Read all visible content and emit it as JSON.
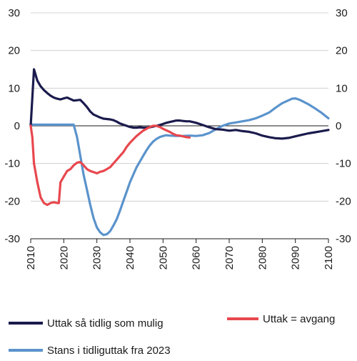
{
  "chart_data": {
    "type": "line",
    "title": "",
    "xlabel": "",
    "ylabel": "",
    "xlim": [
      2010,
      2100
    ],
    "ylim": [
      -30,
      30
    ],
    "x_ticks": [
      "2010",
      "2020",
      "2030",
      "2040",
      "2050",
      "2060",
      "2070",
      "2080",
      "2090",
      "2100"
    ],
    "y_ticks": [
      "30",
      "20",
      "10",
      "0",
      "-10",
      "-20",
      "-30"
    ],
    "grid": "horizontal",
    "legend_placement": "bottom",
    "series": [
      {
        "name": "Uttak så tidlig som mulig",
        "color": "#1b1b4d",
        "x": [
          2010,
          2011,
          2012,
          2013,
          2014,
          2015,
          2016,
          2017,
          2018,
          2019,
          2020,
          2021,
          2022,
          2023,
          2024,
          2025,
          2026,
          2027,
          2028,
          2029,
          2030,
          2031,
          2032,
          2033,
          2034,
          2035,
          2036,
          2037,
          2038,
          2039,
          2040,
          2041,
          2042,
          2043,
          2044,
          2045,
          2046,
          2047,
          2048,
          2049,
          2050,
          2051,
          2052,
          2053,
          2054,
          2055,
          2056,
          2057,
          2058,
          2059,
          2060,
          2062,
          2064,
          2066,
          2068,
          2070,
          2072,
          2074,
          2076,
          2078,
          2080,
          2082,
          2084,
          2086,
          2088,
          2090,
          2092,
          2094,
          2096,
          2098,
          2100
        ],
        "y": [
          0,
          15,
          12,
          10.5,
          9.5,
          8.7,
          8,
          7.5,
          7.2,
          7,
          7.3,
          7.5,
          7.1,
          6.7,
          6.8,
          6.9,
          6,
          5,
          3.8,
          3,
          2.6,
          2.2,
          1.9,
          1.8,
          1.7,
          1.5,
          1.1,
          0.6,
          0.3,
          0,
          -0.3,
          -0.5,
          -0.5,
          -0.4,
          -0.5,
          -0.5,
          -0.4,
          -0.2,
          0,
          0.2,
          0.5,
          0.8,
          1,
          1.2,
          1.4,
          1.4,
          1.3,
          1.2,
          1.2,
          1,
          0.8,
          0.2,
          -0.4,
          -0.9,
          -1,
          -1.3,
          -1.1,
          -1.4,
          -1.6,
          -2,
          -2.6,
          -3,
          -3.3,
          -3.4,
          -3.2,
          -2.8,
          -2.4,
          -2,
          -1.7,
          -1.4,
          -1.1
        ]
      },
      {
        "name": "Stans i tidliguttak fra 2023",
        "color": "#5a93cc",
        "x": [
          2010,
          2011,
          2012,
          2014,
          2016,
          2018,
          2020,
          2022,
          2023,
          2024,
          2025,
          2026,
          2027,
          2028,
          2029,
          2030,
          2031,
          2032,
          2033,
          2034,
          2035,
          2036,
          2037,
          2038,
          2039,
          2040,
          2041,
          2042,
          2043,
          2044,
          2045,
          2046,
          2047,
          2048,
          2049,
          2050,
          2051,
          2052,
          2054,
          2056,
          2058,
          2060,
          2062,
          2064,
          2066,
          2068,
          2070,
          2072,
          2074,
          2076,
          2078,
          2080,
          2082,
          2084,
          2086,
          2088,
          2089,
          2090,
          2091,
          2092,
          2094,
          2096,
          2098,
          2100
        ],
        "y": [
          0.3,
          0.3,
          0.3,
          0.3,
          0.3,
          0.3,
          0.3,
          0.3,
          0.3,
          -3,
          -8,
          -13,
          -17,
          -21,
          -24.5,
          -27,
          -28.3,
          -29,
          -28.8,
          -28,
          -26.5,
          -24.8,
          -22.5,
          -20,
          -17.5,
          -15,
          -13,
          -11,
          -9.5,
          -8,
          -6.5,
          -5.2,
          -4.2,
          -3.5,
          -3,
          -2.7,
          -2.5,
          -2.6,
          -2.7,
          -2.7,
          -2.6,
          -2.7,
          -2.5,
          -1.9,
          -0.9,
          0,
          0.6,
          0.9,
          1.2,
          1.5,
          2,
          2.7,
          3.5,
          4.8,
          6,
          6.8,
          7.2,
          7.3,
          7,
          6.6,
          5.7,
          4.6,
          3.4,
          2
        ]
      },
      {
        "name": "Uttak = avgang",
        "color": "#e8474e",
        "x": [
          2010,
          2010.5,
          2011,
          2012,
          2013,
          2014,
          2015,
          2016,
          2017,
          2018,
          2018.5,
          2019,
          2020,
          2021,
          2022,
          2023,
          2024,
          2025,
          2026,
          2027,
          2028,
          2029,
          2030,
          2031,
          2032,
          2033,
          2034,
          2035,
          2036,
          2037,
          2038,
          2039,
          2040,
          2041,
          2042,
          2043,
          2044,
          2045,
          2046,
          2047,
          2048,
          2049,
          2050,
          2051,
          2052,
          2053,
          2054,
          2055,
          2056,
          2057,
          2058
        ],
        "y": [
          0,
          -3,
          -10,
          -15,
          -19,
          -20.5,
          -21,
          -20.5,
          -20.3,
          -20.5,
          -20.5,
          -15,
          -13.5,
          -12,
          -11.5,
          -10.5,
          -9.8,
          -9.6,
          -10.5,
          -11.5,
          -12,
          -12.3,
          -12.6,
          -12.2,
          -12,
          -11.5,
          -11,
          -10,
          -9,
          -8,
          -7,
          -5.6,
          -4.5,
          -3.6,
          -2.7,
          -2,
          -1.3,
          -0.8,
          -0.3,
          0,
          0,
          -0.3,
          -0.8,
          -1.2,
          -1.6,
          -2.1,
          -2.5,
          -2.6,
          -2.8,
          -3,
          -3.1
        ]
      }
    ]
  }
}
